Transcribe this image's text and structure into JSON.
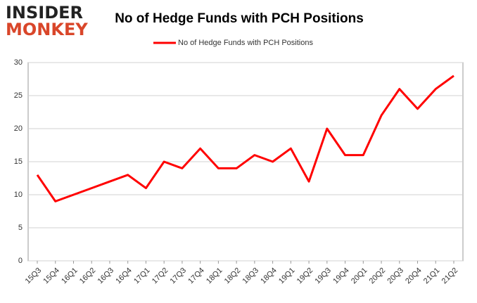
{
  "logo": {
    "line1": "INSIDER",
    "line2": "MONKEY"
  },
  "chart_data": {
    "type": "line",
    "title": "No of Hedge Funds with PCH Positions",
    "categories": [
      "15Q3",
      "15Q4",
      "16Q1",
      "16Q2",
      "16Q3",
      "16Q4",
      "17Q1",
      "17Q2",
      "17Q3",
      "17Q4",
      "18Q1",
      "18Q2",
      "18Q3",
      "18Q4",
      "19Q1",
      "19Q2",
      "19Q3",
      "19Q4",
      "20Q1",
      "20Q2",
      "20Q3",
      "20Q4",
      "21Q1",
      "21Q2"
    ],
    "series": [
      {
        "name": "No of Hedge Funds with PCH Positions",
        "color": "#ff0000",
        "values": [
          13,
          9,
          10,
          11,
          12,
          13,
          11,
          15,
          14,
          17,
          14,
          14,
          16,
          15,
          17,
          12,
          20,
          16,
          16,
          22,
          26,
          23,
          26,
          28
        ]
      }
    ],
    "ylim": [
      0,
      30
    ],
    "yticks": [
      0,
      5,
      10,
      15,
      20,
      25,
      30
    ],
    "grid": true,
    "legend": "top"
  }
}
